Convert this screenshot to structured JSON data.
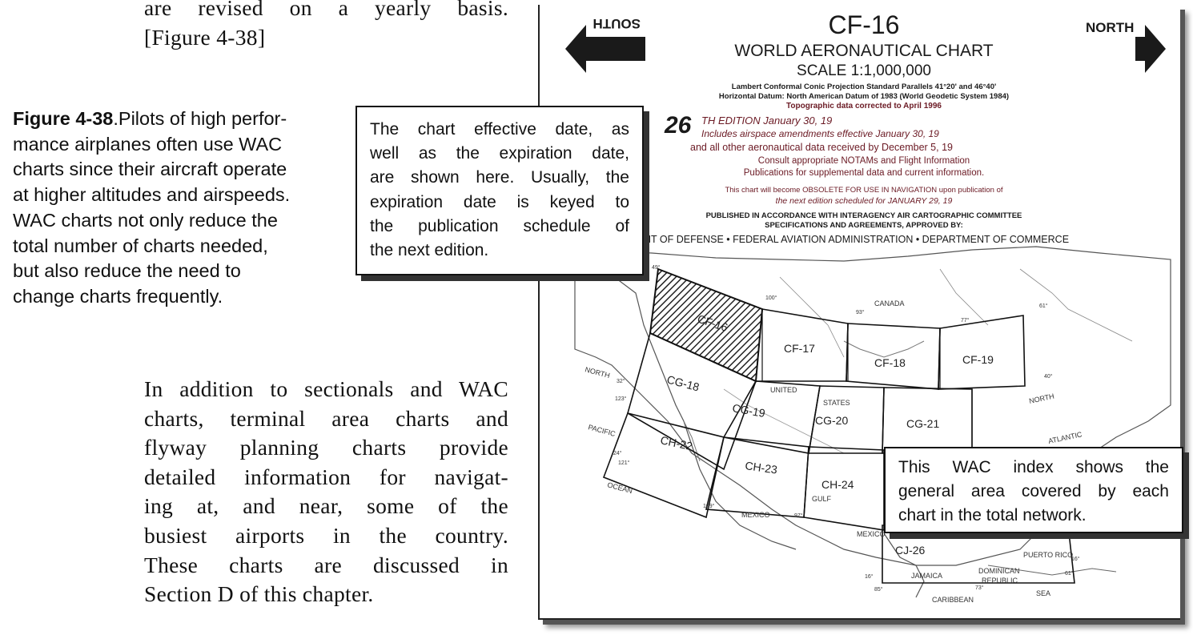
{
  "top_paragraph": {
    "lines": [
      "are revised on a yearly basis.",
      "[Figure 4-38]"
    ]
  },
  "caption": {
    "label": "Figure 4-38",
    "lines": [
      ".Pilots of high perfor-",
      "mance airplanes often use WAC",
      "charts since their aircraft operate",
      "at higher altitudes and airspeeds.",
      "WAC charts not only reduce the",
      "total number of charts needed,",
      "but also reduce the need to",
      "change charts frequently."
    ]
  },
  "body_paragraph": {
    "lines": [
      "In addition to sectionals and WAC",
      "charts, terminal area charts and",
      "flyway planning charts provide",
      "detailed information for navigat-",
      "ing at, and near, some of the",
      "busiest airports in the country.",
      "These charts are discussed in",
      "Section D of this chapter."
    ]
  },
  "callout_date": {
    "lines": [
      "The chart effective date, as",
      "well as the expiration date,",
      "are shown here. Usually, the",
      "expiration date is keyed to",
      "the publication schedule of",
      "the next edition."
    ]
  },
  "callout_index": {
    "lines": [
      "This WAC index shows the",
      "general area covered by each",
      "chart in the total network."
    ]
  },
  "chart_cover": {
    "south_label": "SOUTH",
    "north_label": "NORTH",
    "chart_id": "CF-16",
    "title": "WORLD AERONAUTICAL CHART",
    "scale": "SCALE 1:1,000,000",
    "projection": "Lambert Conformal Conic Projection Standard Parallels 41°20' and 46°40'",
    "datum": "Horizontal Datum: North American Datum of 1983 (World Geodetic System 1984)",
    "topo": "Topographic data corrected to April 1996",
    "edition_number": "26",
    "edition_text": "TH EDITION January 30, 19",
    "airspace": "Includes airspace amendments effective January 30, 19",
    "aero_data": "and all other aeronautical data received by December 5, 19",
    "consult": "Consult appropriate NOTAMs and Flight Information",
    "publications": "Publications for supplemental data and current information.",
    "obsolete": "This chart will become OBSOLETE FOR USE IN NAVIGATION upon publication of",
    "next_edition": "the next edition scheduled for JANUARY 29, 19",
    "published": "PUBLISHED IN ACCORDANCE WITH INTERAGENCY AIR CARTOGRAPHIC COMMITTEE",
    "specs": "SPECIFICATIONS AND AGREEMENTS, APPROVED BY:",
    "departments": "NT OF DEFENSE • FEDERAL AVIATION ADMINISTRATION • DEPARTMENT OF COMMERCE"
  },
  "index_map": {
    "chart_cells": [
      "CF-16",
      "CF-17",
      "CF-18",
      "CF-19",
      "CG-18",
      "CG-19",
      "CG-20",
      "CG-21",
      "CH-22",
      "CH-23",
      "CH-24",
      "CJ-26"
    ],
    "places": [
      "CANADA",
      "UNITED",
      "STATES",
      "MEXICO",
      "NORTH",
      "PACIFIC",
      "OCEAN",
      "GULF",
      "MEXICO",
      "NORTH",
      "ATLANTIC",
      "CARIBBEAN",
      "SEA",
      "JAMAICA",
      "DOMINICAN",
      "REPUBLIC",
      "PUERTO RICO"
    ],
    "degree_marks": [
      "100°",
      "93°",
      "77°",
      "61°",
      "40°",
      "32°",
      "123°",
      "24°",
      "121°",
      "109°",
      "97°",
      "16°",
      "85°",
      "73°",
      "61°",
      "16°",
      "49°"
    ]
  }
}
